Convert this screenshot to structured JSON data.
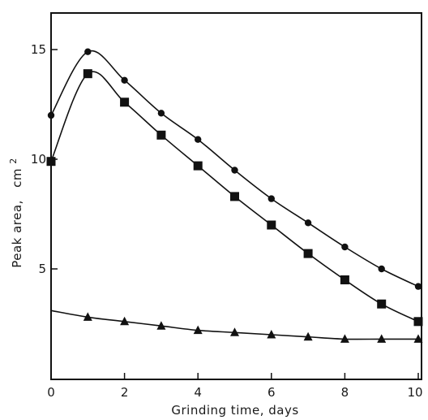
{
  "chart_data": {
    "type": "line",
    "xlabel": "Grinding time,   days",
    "ylabel": "Peak area,",
    "ylabel_unit": "cm",
    "ylabel_unit_sup": "2",
    "xlim": [
      0,
      10
    ],
    "ylim": [
      0,
      17
    ],
    "x_ticks": [
      0,
      2,
      4,
      6,
      8,
      10
    ],
    "x_tick_labels": [
      "0",
      "2",
      "4",
      "6",
      "8",
      "10"
    ],
    "y_ticks": [
      5,
      10,
      15
    ],
    "y_tick_labels": [
      "5",
      "10",
      "15"
    ],
    "grid": false,
    "legend": "none",
    "series": [
      {
        "marker": "circle",
        "color": "#111111",
        "x": [
          0,
          1,
          2,
          3,
          4,
          5,
          6,
          7,
          8,
          9,
          10
        ],
        "y": [
          12.0,
          14.9,
          13.6,
          12.1,
          10.9,
          9.5,
          8.2,
          7.1,
          6.0,
          5.0,
          4.2
        ]
      },
      {
        "marker": "square",
        "color": "#111111",
        "x": [
          0,
          1,
          2,
          3,
          4,
          5,
          6,
          7,
          8,
          9,
          10
        ],
        "y": [
          9.9,
          13.9,
          12.6,
          11.1,
          9.7,
          8.3,
          7.0,
          5.7,
          4.5,
          3.4,
          2.6
        ]
      },
      {
        "marker": "triangle",
        "color": "#111111",
        "x": [
          1,
          2,
          3,
          4,
          5,
          6,
          7,
          8,
          9,
          10
        ],
        "y": [
          2.8,
          2.6,
          2.4,
          2.2,
          2.1,
          2.0,
          1.9,
          1.8,
          1.8,
          1.8
        ]
      }
    ]
  }
}
